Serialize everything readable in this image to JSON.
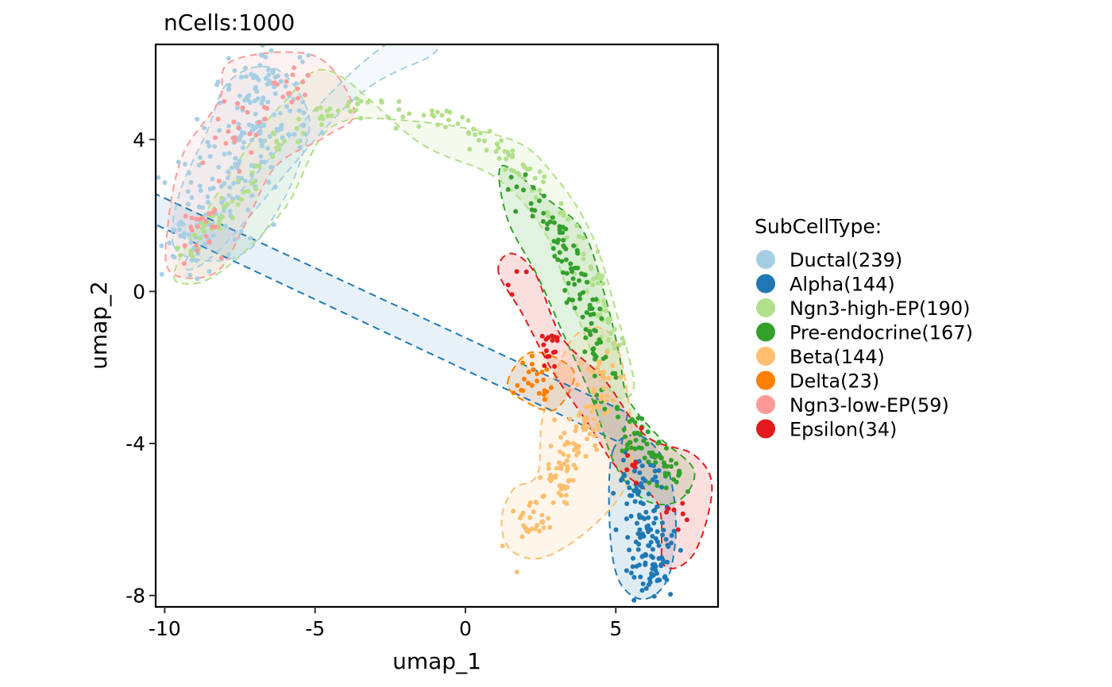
{
  "chart_data": {
    "type": "scatter",
    "title": "nCells:1000",
    "xlabel": "umap_1",
    "ylabel": "umap_2",
    "xlim": [
      -10.3,
      8.4
    ],
    "ylim": [
      -8.3,
      6.5
    ],
    "x_ticks": [
      -10,
      -5,
      0,
      5
    ],
    "y_ticks": [
      -8,
      -4,
      0,
      4
    ],
    "x_tick_labels": [
      "-10",
      "-5",
      "0",
      "5"
    ],
    "y_tick_labels": [
      "-8",
      "-4",
      "0",
      "4"
    ],
    "grid": false,
    "legend": {
      "title": "SubCellType:",
      "placement": "right"
    },
    "series": [
      {
        "name": "Ductal(239)",
        "color": "#A6CEE3",
        "count": 239,
        "hull": [
          [
            -9.7,
            1.2
          ],
          [
            -9.5,
            2.6
          ],
          [
            -8.6,
            4.2
          ],
          [
            -8.0,
            5.4
          ],
          [
            -7.0,
            5.9
          ],
          [
            -6.0,
            5.7
          ],
          [
            -5.2,
            4.6
          ],
          [
            -5.5,
            3.4
          ],
          [
            -6.2,
            2.2
          ],
          [
            -7.2,
            1.1
          ],
          [
            -8.5,
            0.8
          ]
        ],
        "centers": [
          [
            -7.8,
            3.2
          ],
          [
            -7.0,
            4.5
          ],
          [
            -8.8,
            1.8
          ],
          [
            -6.4,
            5.0
          ]
        ],
        "spread": [
          0.7,
          0.8
        ]
      },
      {
        "name": "Alpha(144)",
        "color": "#1F78B4",
        "count": 144,
        "hull": [
          [
            4.9,
            -4.2
          ],
          [
            5.8,
            -3.8
          ],
          [
            6.7,
            -4.6
          ],
          [
            7.0,
            -6.2
          ],
          [
            6.7,
            -7.6
          ],
          [
            5.9,
            -8.1
          ],
          [
            5.1,
            -7.6
          ],
          [
            4.8,
            -6.2
          ]
        ],
        "centers": [
          [
            6.0,
            -6.5
          ],
          [
            5.8,
            -5.0
          ],
          [
            6.3,
            -7.2
          ]
        ],
        "spread": [
          0.35,
          0.5
        ]
      },
      {
        "name": "Ngn3-high-EP(190)",
        "color": "#B2DF8A",
        "count": 190,
        "hull": [
          [
            -9.6,
            0.7
          ],
          [
            -9.2,
            0.2
          ],
          [
            -8.0,
            0.6
          ],
          [
            -6.0,
            2.2
          ],
          [
            -4.5,
            4.3
          ],
          [
            -2.0,
            4.5
          ],
          [
            1.5,
            4.0
          ],
          [
            3.0,
            3.0
          ],
          [
            4.2,
            1.5
          ],
          [
            5.0,
            -0.5
          ],
          [
            5.6,
            -2.5
          ],
          [
            4.8,
            -2.6
          ],
          [
            3.6,
            -0.4
          ],
          [
            2.6,
            1.6
          ],
          [
            1.0,
            3.0
          ],
          [
            -1.5,
            3.9
          ],
          [
            -4.5,
            5.8
          ],
          [
            -6.0,
            5.0
          ],
          [
            -7.5,
            3.5
          ]
        ],
        "path": [
          [
            -9.3,
            0.9
          ],
          [
            -8.2,
            2.0
          ],
          [
            -7.0,
            3.0
          ],
          [
            -5.5,
            4.5
          ],
          [
            -3.5,
            5.0
          ],
          [
            -1.0,
            4.6
          ],
          [
            1.0,
            3.8
          ],
          [
            2.4,
            3.0
          ],
          [
            3.4,
            1.8
          ],
          [
            4.3,
            0.2
          ],
          [
            5.0,
            -1.6
          ]
        ],
        "spread": [
          0.18,
          0.18
        ]
      },
      {
        "name": "Pre-endocrine(167)",
        "color": "#33A02C",
        "count": 167,
        "hull": [
          [
            1.2,
            3.3
          ],
          [
            2.6,
            2.5
          ],
          [
            3.9,
            1.6
          ],
          [
            4.6,
            0.0
          ],
          [
            5.1,
            -1.6
          ],
          [
            5.4,
            -2.8
          ],
          [
            6.4,
            -3.8
          ],
          [
            7.6,
            -4.7
          ],
          [
            7.1,
            -5.5
          ],
          [
            6.0,
            -5.5
          ],
          [
            5.0,
            -4.6
          ],
          [
            4.2,
            -2.8
          ],
          [
            3.3,
            -1.2
          ],
          [
            2.4,
            0.4
          ],
          [
            1.4,
            1.9
          ]
        ],
        "path": [
          [
            1.6,
            2.9
          ],
          [
            2.6,
            2.0
          ],
          [
            3.3,
            1.1
          ],
          [
            3.7,
            0.0
          ],
          [
            4.3,
            -1.0
          ],
          [
            4.6,
            -2.4
          ],
          [
            5.3,
            -3.5
          ],
          [
            6.2,
            -4.3
          ],
          [
            7.0,
            -5.0
          ]
        ],
        "spread": [
          0.25,
          0.25
        ]
      },
      {
        "name": "Beta(144)",
        "color": "#FDBF6F",
        "count": 144,
        "hull": [
          [
            1.2,
            -6.0
          ],
          [
            1.5,
            -6.8
          ],
          [
            2.6,
            -7.0
          ],
          [
            4.2,
            -6.2
          ],
          [
            5.4,
            -5.0
          ],
          [
            5.5,
            -3.4
          ],
          [
            4.9,
            -1.2
          ],
          [
            3.6,
            -1.2
          ],
          [
            2.6,
            -3.2
          ],
          [
            2.4,
            -4.8
          ],
          [
            1.6,
            -5.2
          ]
        ],
        "path": [
          [
            1.9,
            -6.3
          ],
          [
            2.6,
            -5.8
          ],
          [
            3.2,
            -4.8
          ],
          [
            3.6,
            -4.0
          ],
          [
            4.0,
            -3.4
          ],
          [
            4.6,
            -2.6
          ],
          [
            4.4,
            -1.8
          ]
        ],
        "spread": [
          0.3,
          0.3
        ]
      },
      {
        "name": "Delta(23)",
        "color": "#FF7F00",
        "count": 23,
        "hull": [
          [
            1.4,
            -2.4
          ],
          [
            2.2,
            -1.6
          ],
          [
            3.6,
            -2.1
          ],
          [
            3.0,
            -3.1
          ],
          [
            2.0,
            -2.9
          ]
        ],
        "centers": [
          [
            2.3,
            -2.3
          ]
        ],
        "spread": [
          0.35,
          0.25
        ]
      },
      {
        "name": "Ngn3-low-EP(59)",
        "color": "#FB9A99",
        "count": 59,
        "hull": [
          [
            -9.9,
            1.7
          ],
          [
            -9.4,
            3.6
          ],
          [
            -8.2,
            5.0
          ],
          [
            -7.9,
            6.0
          ],
          [
            -6.0,
            6.3
          ],
          [
            -4.6,
            6.0
          ],
          [
            -3.7,
            4.7
          ],
          [
            -4.6,
            4.1
          ],
          [
            -6.3,
            3.3
          ],
          [
            -7.3,
            1.8
          ],
          [
            -8.3,
            0.5
          ],
          [
            -9.8,
            0.5
          ]
        ],
        "centers": [
          [
            -7.6,
            4.2
          ],
          [
            -5.6,
            5.3
          ],
          [
            -8.8,
            1.6
          ]
        ],
        "spread": [
          0.5,
          0.4
        ]
      },
      {
        "name": "Epsilon(34)",
        "color": "#E31A1C",
        "count": 34,
        "hull": [
          [
            1.1,
            0.5
          ],
          [
            1.5,
            1.0
          ],
          [
            2.3,
            0.5
          ],
          [
            3.2,
            -1.2
          ],
          [
            4.6,
            -2.3
          ],
          [
            6.0,
            -3.8
          ],
          [
            7.6,
            -4.3
          ],
          [
            8.2,
            -5.2
          ],
          [
            7.6,
            -6.9
          ],
          [
            6.6,
            -7.2
          ],
          [
            6.4,
            -5.6
          ],
          [
            5.0,
            -4.6
          ],
          [
            4.1,
            -3.5
          ],
          [
            2.9,
            -2.1
          ],
          [
            1.9,
            -0.6
          ]
        ],
        "centers": [
          [
            1.8,
            0.5
          ],
          [
            7.0,
            -5.8
          ],
          [
            5.6,
            -4.3
          ],
          [
            2.8,
            -1.4
          ]
        ],
        "spread": [
          0.22,
          0.3
        ]
      }
    ]
  }
}
